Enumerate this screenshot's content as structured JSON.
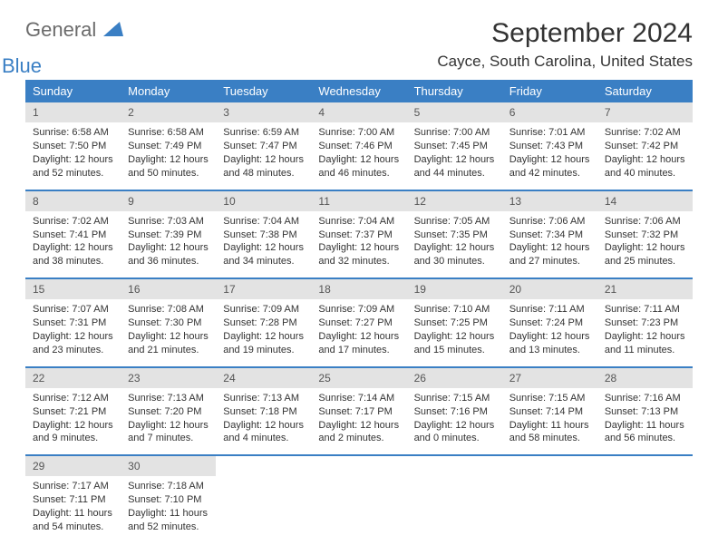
{
  "logo": {
    "general": "General",
    "blue": "Blue"
  },
  "title": "September 2024",
  "location": "Cayce, South Carolina, United States",
  "colors": {
    "header_bg": "#3a7fc4",
    "header_text": "#ffffff",
    "daynum_bg": "#e3e3e3",
    "row_border": "#3a7fc4",
    "body_text": "#333333",
    "logo_gray": "#6b6b6b",
    "logo_blue": "#3a7fc4",
    "page_bg": "#ffffff"
  },
  "typography": {
    "title_fontsize": 30,
    "location_fontsize": 17,
    "weekday_fontsize": 13,
    "daynum_fontsize": 12,
    "body_fontsize": 11
  },
  "weekdays": [
    "Sunday",
    "Monday",
    "Tuesday",
    "Wednesday",
    "Thursday",
    "Friday",
    "Saturday"
  ],
  "weeks": [
    [
      {
        "day": "1",
        "sunrise": "Sunrise: 6:58 AM",
        "sunset": "Sunset: 7:50 PM",
        "daylight": "Daylight: 12 hours and 52 minutes."
      },
      {
        "day": "2",
        "sunrise": "Sunrise: 6:58 AM",
        "sunset": "Sunset: 7:49 PM",
        "daylight": "Daylight: 12 hours and 50 minutes."
      },
      {
        "day": "3",
        "sunrise": "Sunrise: 6:59 AM",
        "sunset": "Sunset: 7:47 PM",
        "daylight": "Daylight: 12 hours and 48 minutes."
      },
      {
        "day": "4",
        "sunrise": "Sunrise: 7:00 AM",
        "sunset": "Sunset: 7:46 PM",
        "daylight": "Daylight: 12 hours and 46 minutes."
      },
      {
        "day": "5",
        "sunrise": "Sunrise: 7:00 AM",
        "sunset": "Sunset: 7:45 PM",
        "daylight": "Daylight: 12 hours and 44 minutes."
      },
      {
        "day": "6",
        "sunrise": "Sunrise: 7:01 AM",
        "sunset": "Sunset: 7:43 PM",
        "daylight": "Daylight: 12 hours and 42 minutes."
      },
      {
        "day": "7",
        "sunrise": "Sunrise: 7:02 AM",
        "sunset": "Sunset: 7:42 PM",
        "daylight": "Daylight: 12 hours and 40 minutes."
      }
    ],
    [
      {
        "day": "8",
        "sunrise": "Sunrise: 7:02 AM",
        "sunset": "Sunset: 7:41 PM",
        "daylight": "Daylight: 12 hours and 38 minutes."
      },
      {
        "day": "9",
        "sunrise": "Sunrise: 7:03 AM",
        "sunset": "Sunset: 7:39 PM",
        "daylight": "Daylight: 12 hours and 36 minutes."
      },
      {
        "day": "10",
        "sunrise": "Sunrise: 7:04 AM",
        "sunset": "Sunset: 7:38 PM",
        "daylight": "Daylight: 12 hours and 34 minutes."
      },
      {
        "day": "11",
        "sunrise": "Sunrise: 7:04 AM",
        "sunset": "Sunset: 7:37 PM",
        "daylight": "Daylight: 12 hours and 32 minutes."
      },
      {
        "day": "12",
        "sunrise": "Sunrise: 7:05 AM",
        "sunset": "Sunset: 7:35 PM",
        "daylight": "Daylight: 12 hours and 30 minutes."
      },
      {
        "day": "13",
        "sunrise": "Sunrise: 7:06 AM",
        "sunset": "Sunset: 7:34 PM",
        "daylight": "Daylight: 12 hours and 27 minutes."
      },
      {
        "day": "14",
        "sunrise": "Sunrise: 7:06 AM",
        "sunset": "Sunset: 7:32 PM",
        "daylight": "Daylight: 12 hours and 25 minutes."
      }
    ],
    [
      {
        "day": "15",
        "sunrise": "Sunrise: 7:07 AM",
        "sunset": "Sunset: 7:31 PM",
        "daylight": "Daylight: 12 hours and 23 minutes."
      },
      {
        "day": "16",
        "sunrise": "Sunrise: 7:08 AM",
        "sunset": "Sunset: 7:30 PM",
        "daylight": "Daylight: 12 hours and 21 minutes."
      },
      {
        "day": "17",
        "sunrise": "Sunrise: 7:09 AM",
        "sunset": "Sunset: 7:28 PM",
        "daylight": "Daylight: 12 hours and 19 minutes."
      },
      {
        "day": "18",
        "sunrise": "Sunrise: 7:09 AM",
        "sunset": "Sunset: 7:27 PM",
        "daylight": "Daylight: 12 hours and 17 minutes."
      },
      {
        "day": "19",
        "sunrise": "Sunrise: 7:10 AM",
        "sunset": "Sunset: 7:25 PM",
        "daylight": "Daylight: 12 hours and 15 minutes."
      },
      {
        "day": "20",
        "sunrise": "Sunrise: 7:11 AM",
        "sunset": "Sunset: 7:24 PM",
        "daylight": "Daylight: 12 hours and 13 minutes."
      },
      {
        "day": "21",
        "sunrise": "Sunrise: 7:11 AM",
        "sunset": "Sunset: 7:23 PM",
        "daylight": "Daylight: 12 hours and 11 minutes."
      }
    ],
    [
      {
        "day": "22",
        "sunrise": "Sunrise: 7:12 AM",
        "sunset": "Sunset: 7:21 PM",
        "daylight": "Daylight: 12 hours and 9 minutes."
      },
      {
        "day": "23",
        "sunrise": "Sunrise: 7:13 AM",
        "sunset": "Sunset: 7:20 PM",
        "daylight": "Daylight: 12 hours and 7 minutes."
      },
      {
        "day": "24",
        "sunrise": "Sunrise: 7:13 AM",
        "sunset": "Sunset: 7:18 PM",
        "daylight": "Daylight: 12 hours and 4 minutes."
      },
      {
        "day": "25",
        "sunrise": "Sunrise: 7:14 AM",
        "sunset": "Sunset: 7:17 PM",
        "daylight": "Daylight: 12 hours and 2 minutes."
      },
      {
        "day": "26",
        "sunrise": "Sunrise: 7:15 AM",
        "sunset": "Sunset: 7:16 PM",
        "daylight": "Daylight: 12 hours and 0 minutes."
      },
      {
        "day": "27",
        "sunrise": "Sunrise: 7:15 AM",
        "sunset": "Sunset: 7:14 PM",
        "daylight": "Daylight: 11 hours and 58 minutes."
      },
      {
        "day": "28",
        "sunrise": "Sunrise: 7:16 AM",
        "sunset": "Sunset: 7:13 PM",
        "daylight": "Daylight: 11 hours and 56 minutes."
      }
    ],
    [
      {
        "day": "29",
        "sunrise": "Sunrise: 7:17 AM",
        "sunset": "Sunset: 7:11 PM",
        "daylight": "Daylight: 11 hours and 54 minutes."
      },
      {
        "day": "30",
        "sunrise": "Sunrise: 7:18 AM",
        "sunset": "Sunset: 7:10 PM",
        "daylight": "Daylight: 11 hours and 52 minutes."
      },
      null,
      null,
      null,
      null,
      null
    ]
  ]
}
